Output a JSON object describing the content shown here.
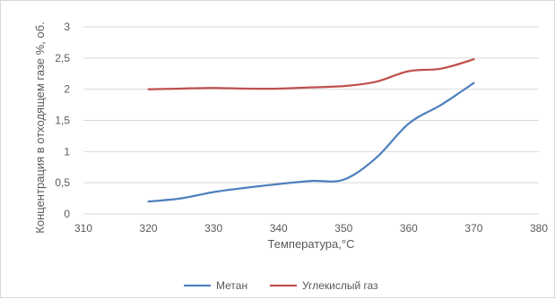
{
  "chart_data": {
    "type": "line",
    "xlabel": "Температура,°С",
    "ylabel": "Концентрация в отходящем газе %, об.",
    "xlim": [
      310,
      380
    ],
    "ylim": [
      0,
      3
    ],
    "x_ticks": [
      "310",
      "320",
      "330",
      "340",
      "350",
      "360",
      "370",
      "380"
    ],
    "y_ticks": [
      "0",
      "0,5",
      "1",
      "1,5",
      "2",
      "2,5",
      "3"
    ],
    "grid": "horizontal",
    "legend_position": "bottom",
    "series": [
      {
        "name": "Метан",
        "color": "#4f81bd",
        "x": [
          320,
          325,
          330,
          335,
          340,
          345,
          350,
          355,
          360,
          365,
          370
        ],
        "y": [
          0.2,
          0.25,
          0.35,
          0.42,
          0.48,
          0.53,
          0.55,
          0.9,
          1.45,
          1.75,
          2.1
        ]
      },
      {
        "name": "Углекислый газ",
        "color": "#c0504d",
        "x": [
          320,
          325,
          330,
          335,
          340,
          345,
          350,
          355,
          360,
          365,
          370
        ],
        "y": [
          2.0,
          2.01,
          2.02,
          2.01,
          2.01,
          2.03,
          2.05,
          2.12,
          2.29,
          2.33,
          2.48
        ]
      }
    ]
  }
}
